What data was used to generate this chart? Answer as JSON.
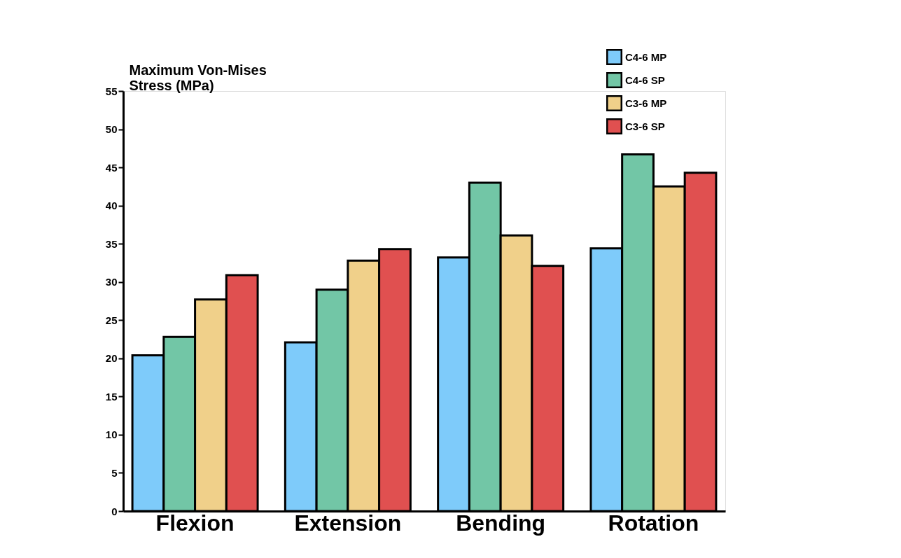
{
  "chart_data": {
    "type": "bar",
    "ylabel": "Maximum Von-Mises\nStress (MPa)",
    "categories": [
      "Flexion",
      "Extension",
      "Bending",
      "Rotation"
    ],
    "series": [
      {
        "name": "C4-6 MP",
        "color": "#7ecbfa",
        "values": [
          20.4,
          22.1,
          33.2,
          34.4
        ]
      },
      {
        "name": "C4-6 SP",
        "color": "#72c6a6",
        "values": [
          22.8,
          29.0,
          43.0,
          46.7
        ]
      },
      {
        "name": "C3-6 MP",
        "color": "#f0d08a",
        "values": [
          27.7,
          32.8,
          36.1,
          42.5
        ]
      },
      {
        "name": "C3-6 SP",
        "color": "#e05050",
        "values": [
          30.9,
          34.3,
          32.1,
          44.3
        ]
      }
    ],
    "ylim": [
      0,
      55
    ],
    "yticks": [
      0,
      5,
      10,
      15,
      20,
      25,
      30,
      35,
      40,
      45,
      50,
      55
    ],
    "grid": false,
    "legend": "top right"
  }
}
